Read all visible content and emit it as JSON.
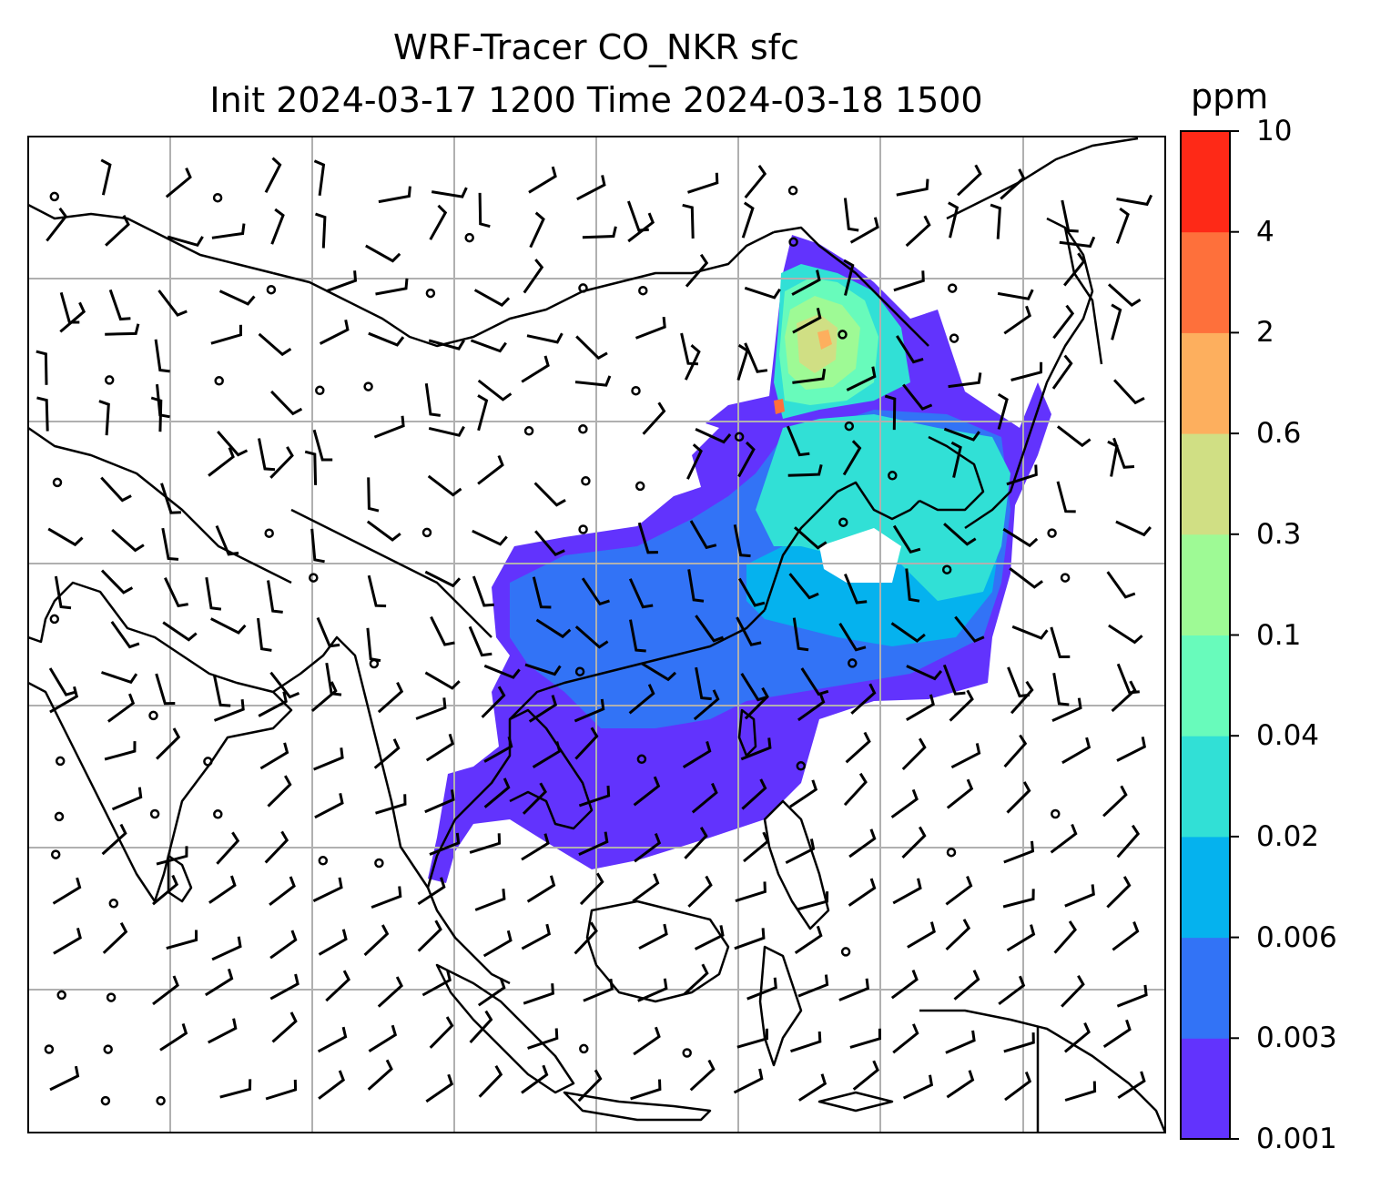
{
  "title": {
    "line1": "WRF-Tracer CO_NKR sfc",
    "line2": "Init 2024-03-17 1200 Time 2024-03-18 1500"
  },
  "colorbar": {
    "unit": "ppm",
    "levels": [
      "0.001",
      "0.003",
      "0.006",
      "0.02",
      "0.04",
      "0.1",
      "0.3",
      "0.6",
      "2",
      "4",
      "10"
    ],
    "colors": [
      "#6233fd",
      "#3273f6",
      "#05b2ee",
      "#31e0d6",
      "#68fbbb",
      "#9efa95",
      "#d0df84",
      "#fdaf5e",
      "#fe703b",
      "#fe2917"
    ]
  },
  "map": {
    "plume_color_key": "level-banded tracer concentration",
    "gridlines": true,
    "wind_barbs": true
  }
}
